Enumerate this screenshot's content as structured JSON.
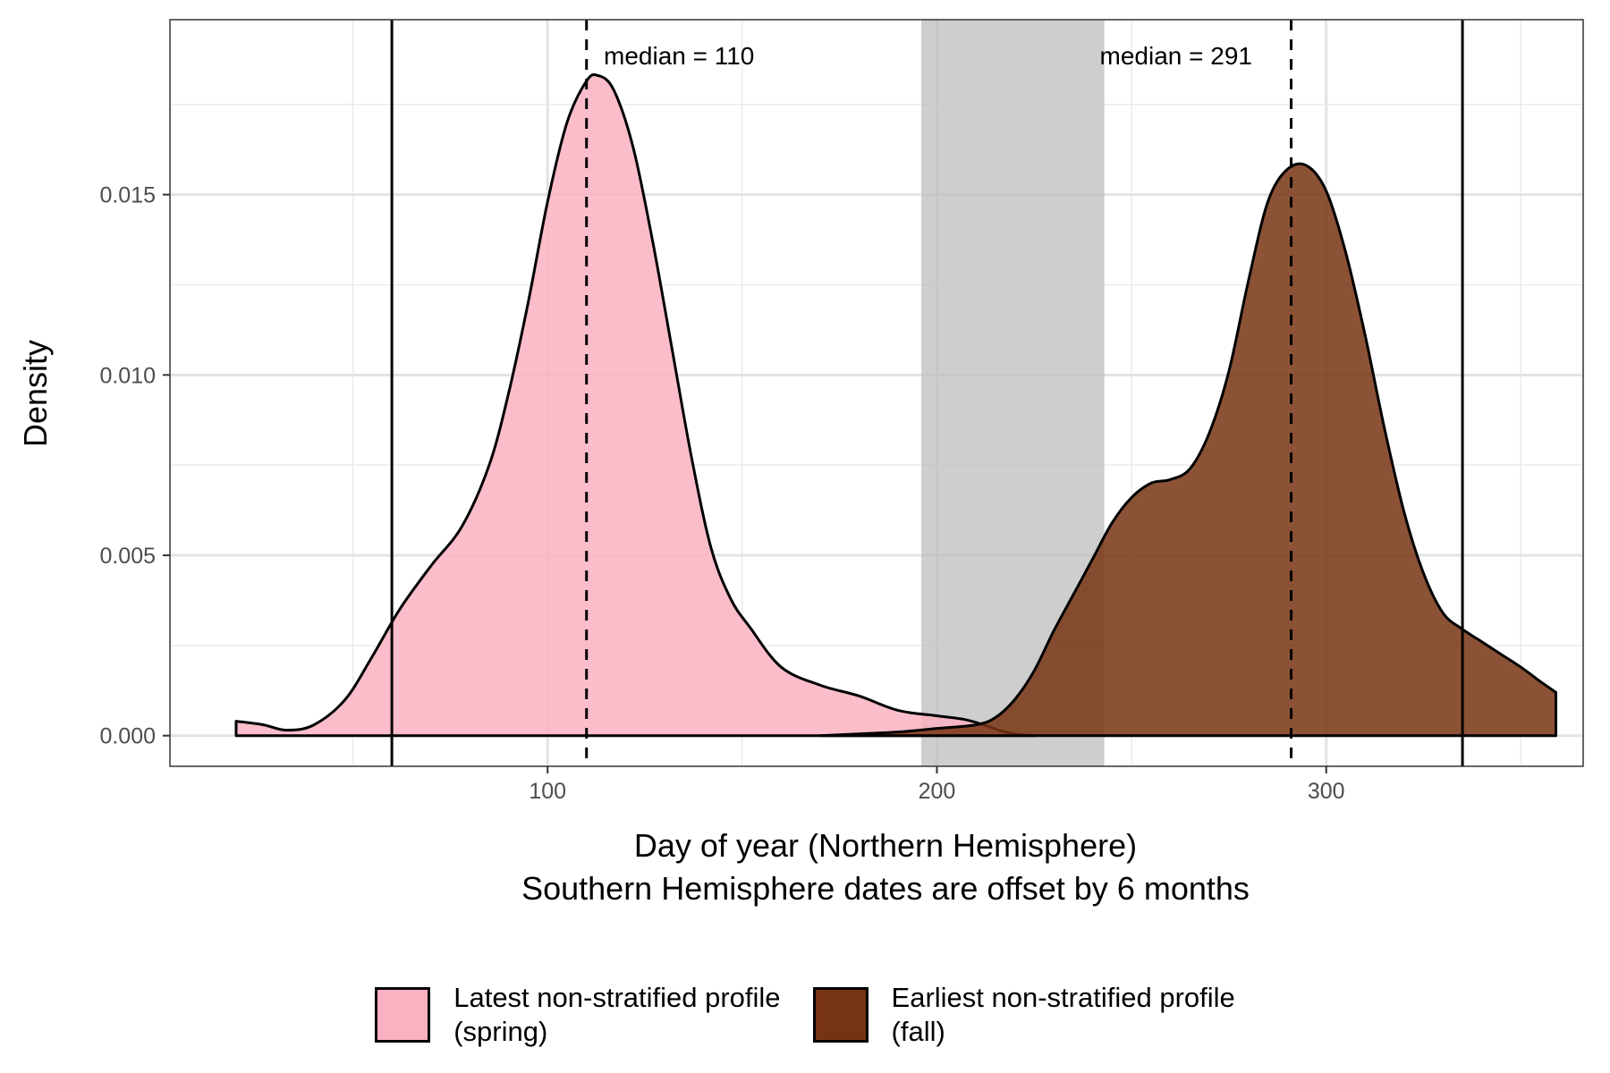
{
  "chart_data": {
    "type": "area",
    "xlabel": "Day of year (Northern Hemisphere)",
    "xlabel2": "Southern Hemisphere dates are offset by 6 months",
    "ylabel": "Density",
    "xlim": [
      3,
      366
    ],
    "ylim": [
      -0.00085,
      0.01985
    ],
    "x_ticks": [
      100,
      200,
      300
    ],
    "y_ticks": [
      0.0,
      0.005,
      0.01,
      0.015
    ],
    "y_tick_labels": [
      "0.000",
      "0.005",
      "0.010",
      "0.015"
    ],
    "grid": true,
    "legend_position": "bottom",
    "shaded_band": {
      "x_start": 196,
      "x_end": 243,
      "color": "#bebebe"
    },
    "vertical_lines": [
      {
        "x": 60,
        "style": "solid"
      },
      {
        "x": 335,
        "style": "solid"
      }
    ],
    "medians": [
      {
        "x": 110,
        "label": "median = 110"
      },
      {
        "x": 291,
        "label": "median = 291"
      }
    ],
    "series": [
      {
        "name": "Latest non-stratified profile\n(spring)",
        "color": "#fbb1c2",
        "x": [
          20,
          27,
          33,
          40,
          48,
          55,
          62,
          70,
          78,
          85,
          90,
          95,
          100,
          105,
          110,
          113,
          117,
          122,
          127,
          132,
          137,
          142,
          147,
          152,
          160,
          170,
          180,
          190,
          200,
          207,
          212,
          216,
          220,
          225
        ],
        "y": [
          0.0004,
          0.0003,
          0.00015,
          0.0003,
          0.001,
          0.0022,
          0.0035,
          0.0047,
          0.0058,
          0.0075,
          0.0095,
          0.012,
          0.0148,
          0.017,
          0.01815,
          0.0183,
          0.0179,
          0.0163,
          0.0137,
          0.0107,
          0.0077,
          0.0052,
          0.0038,
          0.003,
          0.0019,
          0.0014,
          0.0011,
          0.0007,
          0.00055,
          0.00045,
          0.0003,
          0.00015,
          5e-05,
          0.0
        ]
      },
      {
        "name": "Earliest non-stratified profile\n(fall)",
        "color": "#773413",
        "x": [
          170,
          180,
          190,
          200,
          210,
          215,
          220,
          225,
          230,
          235,
          240,
          245,
          250,
          255,
          260,
          265,
          270,
          275,
          280,
          285,
          290,
          295,
          300,
          305,
          310,
          315,
          320,
          325,
          330,
          335,
          340,
          345,
          350,
          355,
          359
        ],
        "y": [
          0.0,
          5e-05,
          0.0001,
          0.0002,
          0.0003,
          0.0005,
          0.001,
          0.0018,
          0.0029,
          0.0039,
          0.0049,
          0.0059,
          0.0066,
          0.007,
          0.0071,
          0.0074,
          0.0084,
          0.0101,
          0.0126,
          0.0148,
          0.0157,
          0.0158,
          0.0151,
          0.0134,
          0.0111,
          0.0085,
          0.0062,
          0.0045,
          0.0034,
          0.00295,
          0.0026,
          0.00225,
          0.0019,
          0.0015,
          0.0012
        ]
      }
    ]
  }
}
